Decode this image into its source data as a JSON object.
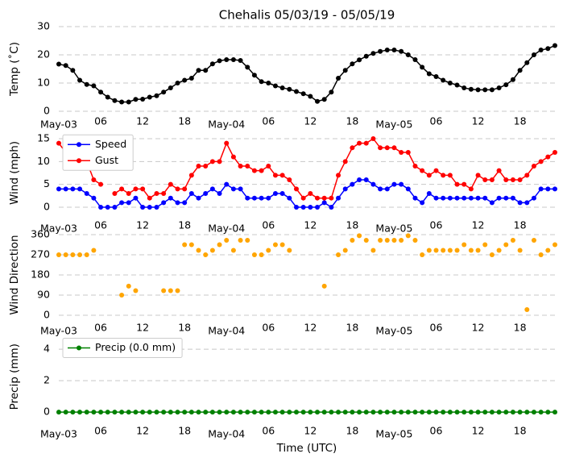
{
  "chart_data": [
    {
      "type": "line",
      "title": "Chehalis 05/03/19 - 05/05/19",
      "ylabel": "Temp (˚C)",
      "x": [
        0,
        1,
        2,
        3,
        4,
        5,
        6,
        7,
        8,
        9,
        10,
        11,
        12,
        13,
        14,
        15,
        16,
        17,
        18,
        19,
        20,
        21,
        22,
        23,
        24,
        25,
        26,
        27,
        28,
        29,
        30,
        31,
        32,
        33,
        34,
        35,
        36,
        37,
        38,
        39,
        40,
        41,
        42,
        43,
        44,
        45,
        46,
        47,
        48,
        49,
        50,
        51,
        52,
        53,
        54,
        55,
        56,
        57,
        58,
        59,
        60,
        61,
        62,
        63,
        64,
        65,
        66,
        67,
        68,
        69,
        70,
        71
      ],
      "series": [
        {
          "color": "#000000",
          "values": [
            16.7,
            16.2,
            14.5,
            11,
            9.5,
            9,
            6.8,
            5,
            3.8,
            3.3,
            3.3,
            4.2,
            4.3,
            5,
            5.5,
            6.8,
            8.3,
            10,
            11,
            11.7,
            14.5,
            14.5,
            16.8,
            17.9,
            18.3,
            18.3,
            18,
            15.6,
            12.8,
            10.5,
            10,
            9,
            8.3,
            7.8,
            7,
            6.2,
            5.3,
            3.5,
            4.2,
            6.8,
            11.7,
            14.5,
            16.8,
            18.2,
            19.5,
            20.5,
            21.2,
            21.7,
            21.7,
            21.2,
            20,
            18.3,
            15.6,
            13.3,
            12.3,
            11,
            10,
            9.3,
            8.3,
            7.8,
            7.6,
            7.6,
            7.6,
            8.3,
            9.4,
            11.2,
            14.5,
            17.2,
            20,
            21.7,
            22.2,
            23.3
          ]
        }
      ],
      "xlim": [
        0,
        71
      ],
      "xticks": [
        {
          "value": 0,
          "label": "May-03"
        },
        {
          "value": 6,
          "label": "06"
        },
        {
          "value": 12,
          "label": "12"
        },
        {
          "value": 18,
          "label": "18"
        },
        {
          "value": 24,
          "label": "May-04"
        },
        {
          "value": 30,
          "label": "06"
        },
        {
          "value": 36,
          "label": "12"
        },
        {
          "value": 42,
          "label": "18"
        },
        {
          "value": 48,
          "label": "May-05"
        },
        {
          "value": 54,
          "label": "06"
        },
        {
          "value": 60,
          "label": "12"
        },
        {
          "value": 66,
          "label": "18"
        }
      ],
      "ylim": [
        0,
        30
      ],
      "yticks": [
        0,
        10,
        20,
        30
      ],
      "grid": true
    },
    {
      "type": "line",
      "ylabel": "Wind (mph)",
      "x": [
        0,
        1,
        2,
        3,
        4,
        5,
        6,
        7,
        8,
        9,
        10,
        11,
        12,
        13,
        14,
        15,
        16,
        17,
        18,
        19,
        20,
        21,
        22,
        23,
        24,
        25,
        26,
        27,
        28,
        29,
        30,
        31,
        32,
        33,
        34,
        35,
        36,
        37,
        38,
        39,
        40,
        41,
        42,
        43,
        44,
        45,
        46,
        47,
        48,
        49,
        50,
        51,
        52,
        53,
        54,
        55,
        56,
        57,
        58,
        59,
        60,
        61,
        62,
        63,
        64,
        65,
        66,
        67,
        68,
        69,
        70,
        71
      ],
      "series": [
        {
          "name": "Speed",
          "color": "#0000ff",
          "values": [
            4,
            4,
            4,
            4,
            3,
            2,
            0,
            0,
            0,
            1,
            1,
            2,
            0,
            0,
            0,
            1,
            2,
            1,
            1,
            3,
            2,
            3,
            4,
            3,
            5,
            4,
            4,
            2,
            2,
            2,
            2,
            3,
            3,
            2,
            0,
            0,
            0,
            0,
            1,
            0,
            2,
            4,
            5,
            6,
            6,
            5,
            4,
            4,
            5,
            5,
            4,
            2,
            1,
            3,
            2,
            2,
            2,
            2,
            2,
            2,
            2,
            2,
            1,
            2,
            2,
            2,
            1,
            1,
            2,
            4,
            4,
            4
          ]
        },
        {
          "name": "Gust",
          "color": "#ff0000",
          "values": [
            14,
            12,
            11,
            11,
            10,
            6,
            5,
            null,
            3,
            4,
            3,
            4,
            4,
            2,
            3,
            3,
            5,
            4,
            4,
            7,
            9,
            9,
            10,
            10,
            14,
            11,
            9,
            9,
            8,
            8,
            9,
            7,
            7,
            6,
            4,
            2,
            3,
            2,
            2,
            2,
            7,
            10,
            13,
            14,
            14,
            15,
            13,
            13,
            13,
            12,
            12,
            9,
            8,
            7,
            8,
            7,
            7,
            5,
            5,
            4,
            7,
            6,
            6,
            8,
            6,
            6,
            6,
            7,
            9,
            10,
            11,
            12
          ]
        }
      ],
      "xlim": [
        0,
        71
      ],
      "xticks": [
        {
          "value": 0,
          "label": "May-03"
        },
        {
          "value": 6,
          "label": "06"
        },
        {
          "value": 12,
          "label": "12"
        },
        {
          "value": 18,
          "label": "18"
        },
        {
          "value": 24,
          "label": "May-04"
        },
        {
          "value": 30,
          "label": "06"
        },
        {
          "value": 36,
          "label": "12"
        },
        {
          "value": 42,
          "label": "18"
        },
        {
          "value": 48,
          "label": "May-05"
        },
        {
          "value": 54,
          "label": "06"
        },
        {
          "value": 60,
          "label": "12"
        },
        {
          "value": 66,
          "label": "18"
        }
      ],
      "ylim": [
        -1,
        16
      ],
      "yticks": [
        0,
        5,
        10,
        15
      ],
      "grid": true,
      "legend": "upper left"
    },
    {
      "type": "scatter",
      "ylabel": "Wind Direction",
      "x": [
        0,
        1,
        2,
        3,
        4,
        5,
        6,
        7,
        8,
        9,
        10,
        11,
        12,
        13,
        14,
        15,
        16,
        17,
        18,
        19,
        20,
        21,
        22,
        23,
        24,
        25,
        26,
        27,
        28,
        29,
        30,
        31,
        32,
        33,
        34,
        35,
        36,
        37,
        38,
        39,
        40,
        41,
        42,
        43,
        44,
        45,
        46,
        47,
        48,
        49,
        50,
        51,
        52,
        53,
        54,
        55,
        56,
        57,
        58,
        59,
        60,
        61,
        62,
        63,
        64,
        65,
        66,
        67,
        68,
        69,
        70,
        71
      ],
      "series": [
        {
          "color": "#ffa500",
          "values": [
            270,
            270,
            270,
            270,
            270,
            290,
            null,
            null,
            null,
            90,
            130,
            110,
            null,
            null,
            null,
            110,
            110,
            110,
            315,
            315,
            290,
            270,
            290,
            315,
            335,
            290,
            335,
            335,
            270,
            270,
            290,
            315,
            315,
            290,
            null,
            null,
            null,
            null,
            130,
            null,
            270,
            290,
            335,
            355,
            335,
            290,
            335,
            335,
            335,
            335,
            355,
            335,
            270,
            290,
            290,
            290,
            290,
            290,
            315,
            290,
            290,
            315,
            270,
            290,
            315,
            335,
            290,
            25,
            335,
            270,
            290,
            315
          ]
        }
      ],
      "xlim": [
        0,
        71
      ],
      "xticks": [
        {
          "value": 0,
          "label": "May-03"
        },
        {
          "value": 6,
          "label": "06"
        },
        {
          "value": 12,
          "label": "12"
        },
        {
          "value": 18,
          "label": "18"
        },
        {
          "value": 24,
          "label": "May-04"
        },
        {
          "value": 30,
          "label": "06"
        },
        {
          "value": 36,
          "label": "12"
        },
        {
          "value": 42,
          "label": "18"
        },
        {
          "value": 48,
          "label": "May-05"
        },
        {
          "value": 54,
          "label": "06"
        },
        {
          "value": 60,
          "label": "12"
        },
        {
          "value": 66,
          "label": "18"
        }
      ],
      "ylim": [
        -18,
        378
      ],
      "yticks": [
        0,
        90,
        180,
        270,
        360
      ],
      "grid": true
    },
    {
      "type": "line",
      "ylabel": "Precip (mm)",
      "xlabel": "Time (UTC)",
      "x": [
        0,
        1,
        2,
        3,
        4,
        5,
        6,
        7,
        8,
        9,
        10,
        11,
        12,
        13,
        14,
        15,
        16,
        17,
        18,
        19,
        20,
        21,
        22,
        23,
        24,
        25,
        26,
        27,
        28,
        29,
        30,
        31,
        32,
        33,
        34,
        35,
        36,
        37,
        38,
        39,
        40,
        41,
        42,
        43,
        44,
        45,
        46,
        47,
        48,
        49,
        50,
        51,
        52,
        53,
        54,
        55,
        56,
        57,
        58,
        59,
        60,
        61,
        62,
        63,
        64,
        65,
        66,
        67,
        68,
        69,
        70,
        71
      ],
      "series": [
        {
          "name": "Precip (0.0 mm)",
          "color": "#008000",
          "values": [
            0,
            0,
            0,
            0,
            0,
            0,
            0,
            0,
            0,
            0,
            0,
            0,
            0,
            0,
            0,
            0,
            0,
            0,
            0,
            0,
            0,
            0,
            0,
            0,
            0,
            0,
            0,
            0,
            0,
            0,
            0,
            0,
            0,
            0,
            0,
            0,
            0,
            0,
            0,
            0,
            0,
            0,
            0,
            0,
            0,
            0,
            0,
            0,
            0,
            0,
            0,
            0,
            0,
            0,
            0,
            0,
            0,
            0,
            0,
            0,
            0,
            0,
            0,
            0,
            0,
            0,
            0,
            0,
            0,
            0,
            0,
            0
          ]
        }
      ],
      "xlim": [
        0,
        71
      ],
      "xticks": [
        {
          "value": 0,
          "label": "May-03"
        },
        {
          "value": 6,
          "label": "06"
        },
        {
          "value": 12,
          "label": "12"
        },
        {
          "value": 18,
          "label": "18"
        },
        {
          "value": 24,
          "label": "May-04"
        },
        {
          "value": 30,
          "label": "06"
        },
        {
          "value": 36,
          "label": "12"
        },
        {
          "value": 42,
          "label": "18"
        },
        {
          "value": 48,
          "label": "May-05"
        },
        {
          "value": 54,
          "label": "06"
        },
        {
          "value": 60,
          "label": "12"
        },
        {
          "value": 66,
          "label": "18"
        }
      ],
      "ylim": [
        -0.25,
        4.75
      ],
      "yticks": [
        0,
        2,
        4
      ],
      "grid": true,
      "legend": "upper left"
    }
  ]
}
